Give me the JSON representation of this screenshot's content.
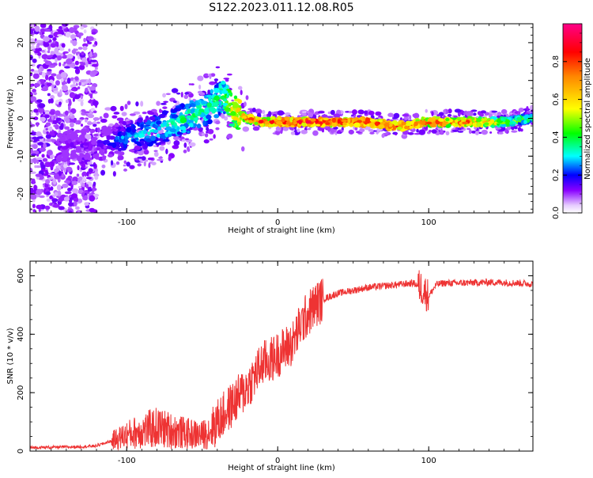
{
  "figure": {
    "title": "S122.2023.011.12.08.R05"
  },
  "chart_data": [
    {
      "type": "heatmap",
      "xlabel": "Height of straight line (km)",
      "ylabel": "Frequency (Hz)",
      "xlim": [
        -164,
        169
      ],
      "ylim": [
        -25,
        25
      ],
      "xticks": [
        -100,
        0,
        100
      ],
      "xtick_labels": [
        "-100",
        "0",
        "100"
      ],
      "yticks": [
        -20,
        -10,
        0,
        10,
        20
      ],
      "ytick_labels": [
        "-20",
        "-10",
        "0",
        "10",
        "20"
      ],
      "colorbar": {
        "label": "Normalized spectral amplitude",
        "range": [
          0.0,
          1.0
        ],
        "ticks": [
          0.0,
          0.2,
          0.4,
          0.6,
          0.8
        ],
        "tick_labels": [
          "0.0",
          "0.2",
          "0.4",
          "0.6",
          "0.8"
        ]
      },
      "ridge": {
        "x": [
          -164,
          -140,
          -120,
          -100,
          -80,
          -60,
          -45,
          -36,
          -30,
          -20,
          -10,
          0,
          20,
          40,
          60,
          75,
          85,
          95,
          110,
          130,
          150,
          169
        ],
        "freq": [
          -8,
          -7,
          -7,
          -5,
          -3,
          0,
          3,
          6,
          2,
          0,
          -1,
          -1,
          -1,
          -1,
          -1,
          -2,
          -2,
          -1,
          -1,
          -1,
          -1,
          0
        ],
        "amplitude": [
          0.15,
          0.15,
          0.15,
          0.3,
          0.35,
          0.4,
          0.4,
          0.45,
          0.6,
          0.8,
          0.85,
          0.9,
          0.9,
          0.9,
          0.9,
          0.85,
          0.85,
          0.85,
          0.8,
          0.8,
          0.6,
          0.45
        ]
      }
    },
    {
      "type": "line",
      "xlabel": "Height of straight line (km)",
      "ylabel": "SNR (10 * v/v)",
      "xlim": [
        -164,
        169
      ],
      "ylim": [
        0,
        650
      ],
      "xticks": [
        -100,
        0,
        100
      ],
      "xtick_labels": [
        "-100",
        "0",
        "100"
      ],
      "yticks": [
        0,
        200,
        400,
        600
      ],
      "ytick_labels": [
        "0",
        "200",
        "400",
        "600"
      ],
      "color": "#ee3333",
      "series": [
        {
          "name": "SNR",
          "x": [
            -164,
            -150,
            -130,
            -120,
            -110,
            -100,
            -90,
            -80,
            -70,
            -60,
            -50,
            -45,
            -40,
            -35,
            -30,
            -25,
            -20,
            -15,
            -10,
            -5,
            0,
            5,
            10,
            15,
            20,
            25,
            30,
            40,
            50,
            60,
            70,
            80,
            90,
            95,
            100,
            105,
            110,
            120,
            140,
            160,
            169
          ],
          "y": [
            12,
            13,
            15,
            18,
            35,
            55,
            70,
            80,
            70,
            60,
            55,
            70,
            100,
            130,
            160,
            190,
            220,
            260,
            300,
            310,
            330,
            350,
            370,
            430,
            470,
            500,
            520,
            540,
            550,
            560,
            565,
            570,
            575,
            560,
            530,
            570,
            575,
            575,
            578,
            575,
            572
          ]
        }
      ]
    }
  ]
}
